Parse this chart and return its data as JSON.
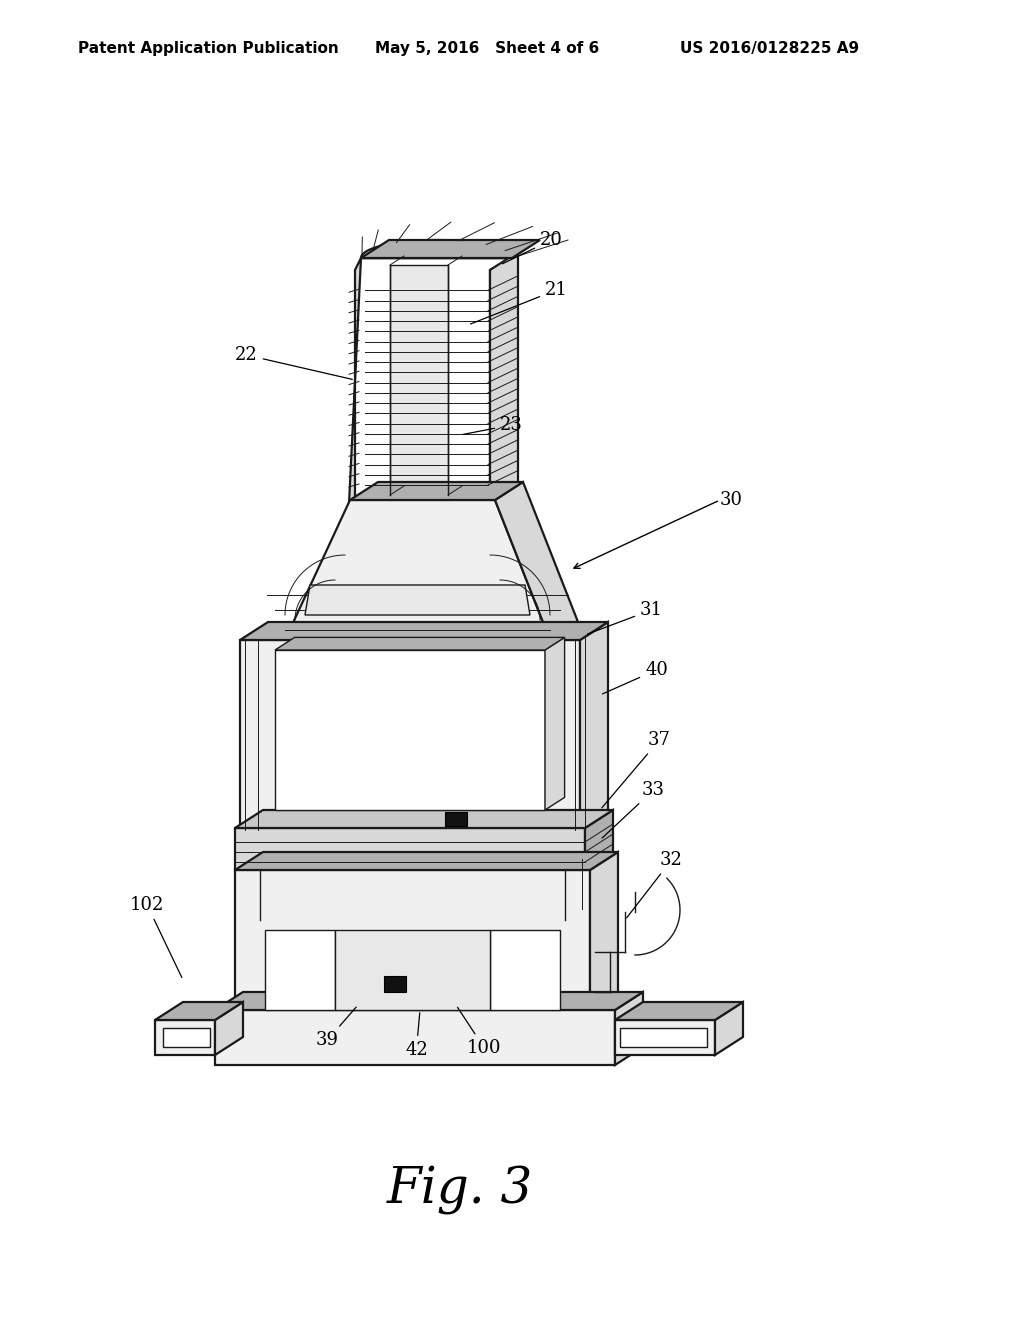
{
  "background_color": "#ffffff",
  "header_left": "Patent Application Publication",
  "header_center": "May 5, 2016   Sheet 4 of 6",
  "header_right": "US 2016/0128225 A9",
  "figure_label": "Fig. 3",
  "header_fontsize": 11,
  "figure_label_fontsize": 36,
  "line_color": "#1a1a1a",
  "lw_main": 1.6,
  "lw_med": 1.0,
  "lw_light": 0.7,
  "fill_white": "#ffffff",
  "fill_light": "#f0f0f0",
  "fill_mid": "#d8d8d8",
  "fill_dark": "#b0b0b0",
  "label_fs": 13
}
